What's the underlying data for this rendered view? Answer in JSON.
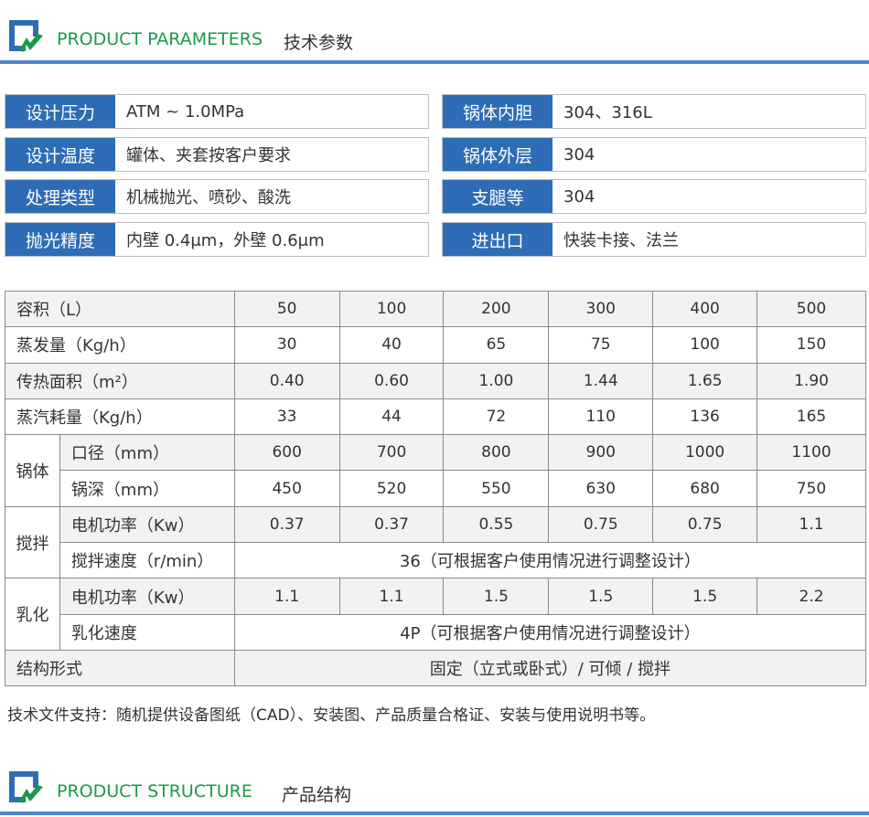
{
  "section1": {
    "title_en": "PRODUCT PARAMETERS",
    "title_cn": "技术参数"
  },
  "specs_left": [
    {
      "label": "设计压力",
      "value": "ATM ~ 1.0MPa"
    },
    {
      "label": "设计温度",
      "value": "罐体、夹套按客户要求"
    },
    {
      "label": "处理类型",
      "value": "机械抛光、喷砂、酸洗"
    },
    {
      "label": "抛光精度",
      "value": "内壁 0.4μm，外壁 0.6μm"
    }
  ],
  "specs_right": [
    {
      "label": "锅体内胆",
      "value": "304、316L"
    },
    {
      "label": "锅体外层",
      "value": "304"
    },
    {
      "label": "支腿等",
      "value": "304"
    },
    {
      "label": "进出口",
      "value": "快装卡接、法兰"
    }
  ],
  "table": {
    "rows": [
      {
        "label": "容积（L）",
        "values": [
          "50",
          "100",
          "200",
          "300",
          "400",
          "500"
        ]
      },
      {
        "label": "蒸发量（Kg/h）",
        "values": [
          "30",
          "40",
          "65",
          "75",
          "100",
          "150"
        ]
      },
      {
        "label": "传热面积（m²）",
        "values": [
          "0.40",
          "0.60",
          "1.00",
          "1.44",
          "1.65",
          "1.90"
        ]
      },
      {
        "label": "蒸汽耗量（Kg/h）",
        "values": [
          "33",
          "44",
          "72",
          "110",
          "136",
          "165"
        ]
      },
      {
        "group": "锅体",
        "label": "口径（mm）",
        "values": [
          "600",
          "700",
          "800",
          "900",
          "1000",
          "1100"
        ]
      },
      {
        "label": "锅深（mm）",
        "values": [
          "450",
          "520",
          "550",
          "630",
          "680",
          "750"
        ]
      },
      {
        "group": "搅拌",
        "label": "电机功率（Kw）",
        "values": [
          "0.37",
          "0.37",
          "0.55",
          "0.75",
          "0.75",
          "1.1"
        ]
      },
      {
        "label": "搅拌速度（r/min）",
        "merged": "36（可根据客户使用情况进行调整设计）"
      },
      {
        "group": "乳化",
        "label": "电机功率（Kw）",
        "values": [
          "1.1",
          "1.1",
          "1.5",
          "1.5",
          "1.5",
          "2.2"
        ]
      },
      {
        "label": "乳化速度",
        "merged": "4P（可根据客户使用情况进行调整设计）"
      },
      {
        "label": "结构形式",
        "merged": "固定（立式或卧式）/ 可倾 / 搅拌"
      }
    ]
  },
  "note": "技术文件支持：随机提供设备图纸（CAD）、安装图、产品质量合格证、安装与使用说明书等。",
  "section2": {
    "title_en": "PRODUCT STRUCTURE",
    "title_cn": "产品结构"
  },
  "colors": {
    "accent_blue": "#2e6db5",
    "title_green": "#1a9a4a",
    "row_gray": "#f2f2f2"
  }
}
